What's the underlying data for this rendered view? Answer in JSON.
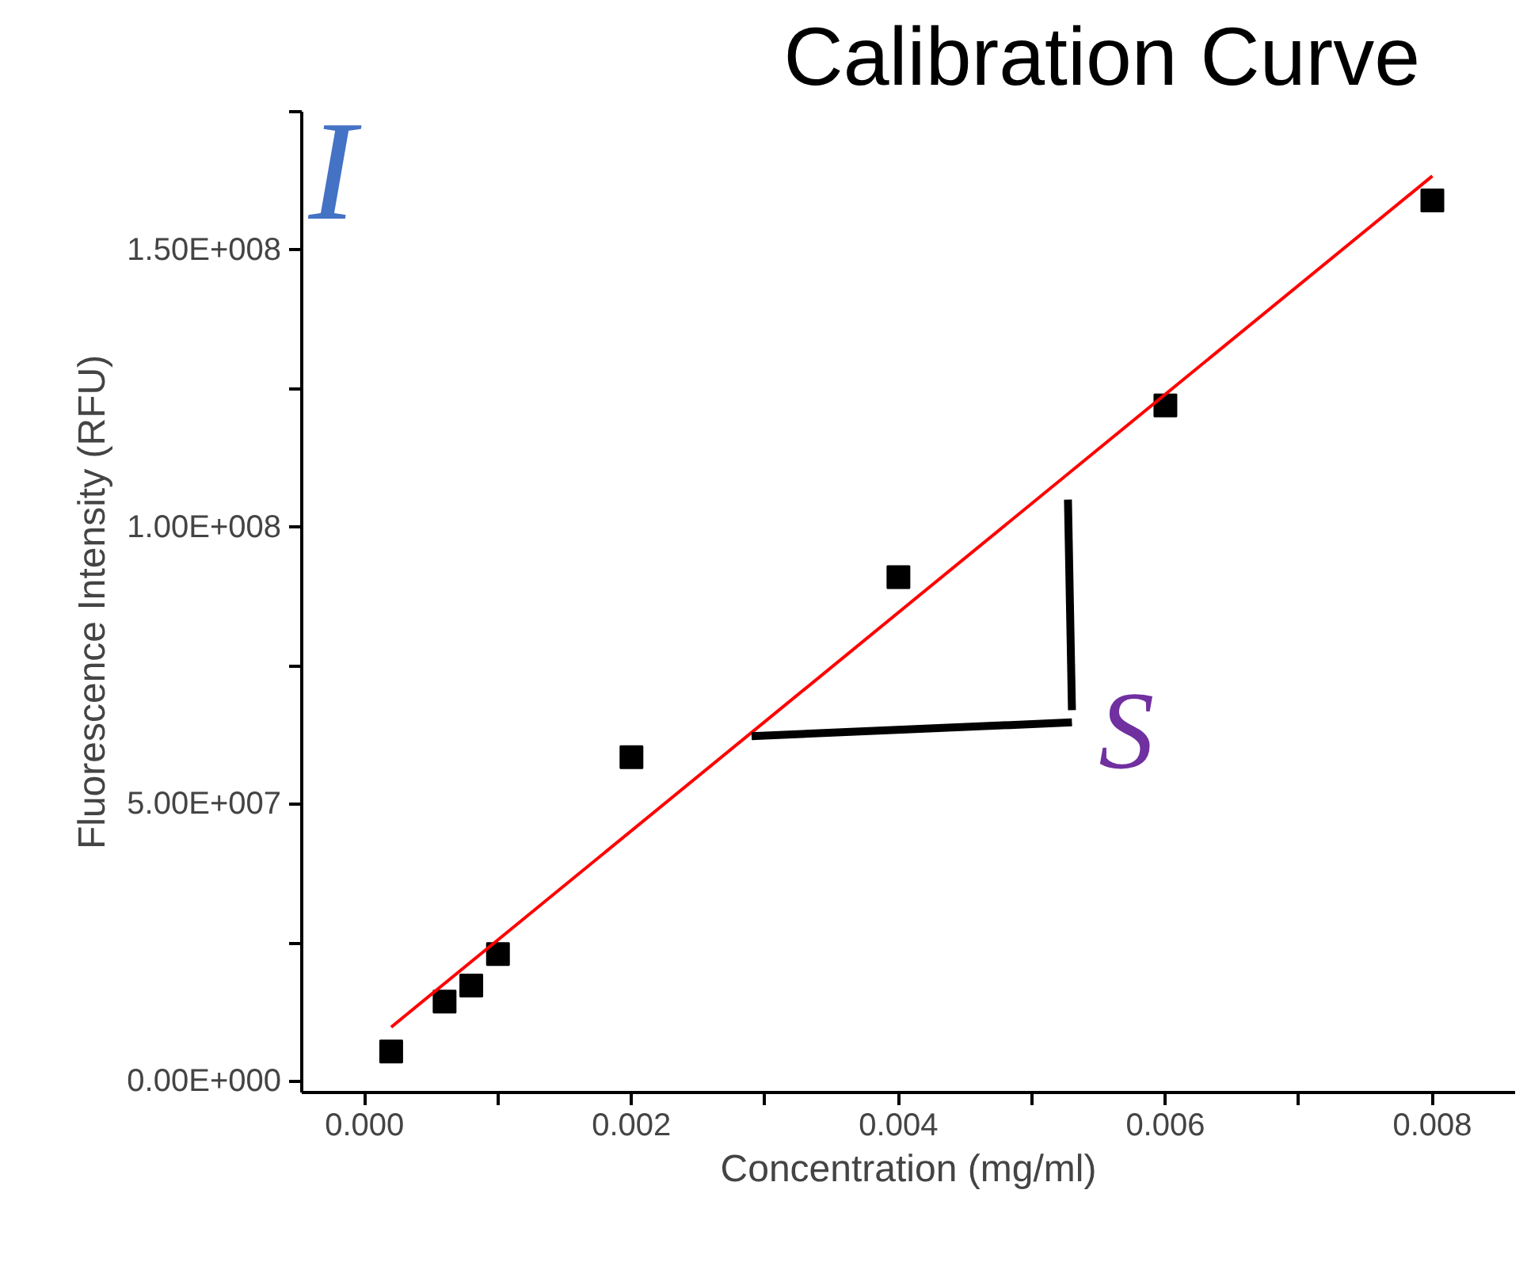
{
  "chart_data": {
    "type": "scatter",
    "title": "Calibration Curve",
    "xlabel": "Concentration (mg/ml)",
    "ylabel": "Fluorescence Intensity (RFU)",
    "annotations": [
      "I",
      "S"
    ],
    "series": [
      {
        "type": "scatter",
        "color": "#000000",
        "marker": "square",
        "x": [
          0.0002,
          0.0006,
          0.0008,
          0.001,
          0.002,
          0.004,
          0.006,
          0.008
        ],
        "values": [
          5400000,
          14400000,
          17300000,
          23000000,
          58500000,
          91000000,
          122000000,
          159000000
        ]
      },
      {
        "type": "line",
        "color": "#ff0000",
        "marker": "none",
        "line_style": "solid",
        "x": [
          0.0002,
          0.008
        ],
        "values": [
          9800000,
          163400000
        ]
      }
    ],
    "xlim": [
      -0.00047,
      0.00862
    ],
    "ylim": [
      -2000000,
      175000000
    ],
    "xticks": [
      {
        "value": 0,
        "label": "0.000"
      },
      {
        "value": 0.001,
        "label": null
      },
      {
        "value": 0.002,
        "label": "0.002"
      },
      {
        "value": 0.003,
        "label": null
      },
      {
        "value": 0.004,
        "label": "0.004"
      },
      {
        "value": 0.005,
        "label": null
      },
      {
        "value": 0.006,
        "label": "0.006"
      },
      {
        "value": 0.007,
        "label": null
      },
      {
        "value": 0.008,
        "label": "0.008"
      }
    ],
    "yticks": [
      {
        "value": 0,
        "label": "0.00E+000"
      },
      {
        "value": 25000000,
        "label": null
      },
      {
        "value": 50000000,
        "label": "5.00E+007"
      },
      {
        "value": 75000000,
        "label": null
      },
      {
        "value": 100000000,
        "label": "1.00E+008"
      },
      {
        "value": 125000000,
        "label": null
      },
      {
        "value": 150000000,
        "label": "1.50E+008"
      },
      {
        "value": 175000000,
        "label": null
      }
    ],
    "grid": false
  }
}
